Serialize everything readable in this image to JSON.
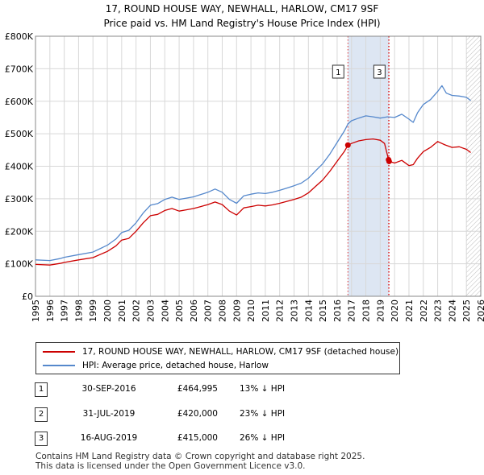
{
  "chart_data": {
    "type": "line",
    "title_line1": "17, ROUND HOUSE WAY, NEWHALL, HARLOW, CM17 9SF",
    "title_line2": "Price paid vs. HM Land Registry's House Price Index (HPI)",
    "xlim": [
      1995,
      2026
    ],
    "ylim": [
      0,
      800000
    ],
    "y_ticks": [
      {
        "value": 0,
        "label": "£0"
      },
      {
        "value": 100000,
        "label": "£100K"
      },
      {
        "value": 200000,
        "label": "£200K"
      },
      {
        "value": 300000,
        "label": "£300K"
      },
      {
        "value": 400000,
        "label": "£400K"
      },
      {
        "value": 500000,
        "label": "£500K"
      },
      {
        "value": 600000,
        "label": "£600K"
      },
      {
        "value": 700000,
        "label": "£700K"
      },
      {
        "value": 800000,
        "label": "£800K"
      }
    ],
    "x_ticks": [
      "1995",
      "1996",
      "1997",
      "1998",
      "1999",
      "2000",
      "2001",
      "2002",
      "2003",
      "2004",
      "2005",
      "2006",
      "2007",
      "2008",
      "2009",
      "2010",
      "2011",
      "2012",
      "2013",
      "2014",
      "2015",
      "2016",
      "2017",
      "2018",
      "2019",
      "2020",
      "2021",
      "2022",
      "2023",
      "2024",
      "2025",
      "2026"
    ],
    "series": [
      {
        "name": "17, ROUND HOUSE WAY, NEWHALL, HARLOW, CM17 9SF (detached house)",
        "color": "#cc0000",
        "points": [
          [
            1995.0,
            98000
          ],
          [
            1996.0,
            96000
          ],
          [
            1996.7,
            101000
          ],
          [
            1997.0,
            104000
          ],
          [
            1998.0,
            112000
          ],
          [
            1999.0,
            119000
          ],
          [
            2000.0,
            138000
          ],
          [
            2000.6,
            155000
          ],
          [
            2001.0,
            173000
          ],
          [
            2001.5,
            178000
          ],
          [
            2002.0,
            200000
          ],
          [
            2002.5,
            226000
          ],
          [
            2003.0,
            248000
          ],
          [
            2003.5,
            252000
          ],
          [
            2004.0,
            264000
          ],
          [
            2004.5,
            270000
          ],
          [
            2005.0,
            262000
          ],
          [
            2005.5,
            266000
          ],
          [
            2006.0,
            270000
          ],
          [
            2006.5,
            276000
          ],
          [
            2007.0,
            282000
          ],
          [
            2007.5,
            290000
          ],
          [
            2008.0,
            282000
          ],
          [
            2008.5,
            262000
          ],
          [
            2009.0,
            250000
          ],
          [
            2009.5,
            272000
          ],
          [
            2010.0,
            276000
          ],
          [
            2010.5,
            280000
          ],
          [
            2011.0,
            278000
          ],
          [
            2011.5,
            281000
          ],
          [
            2012.0,
            286000
          ],
          [
            2012.5,
            292000
          ],
          [
            2013.0,
            298000
          ],
          [
            2013.5,
            305000
          ],
          [
            2014.0,
            318000
          ],
          [
            2014.5,
            338000
          ],
          [
            2015.0,
            358000
          ],
          [
            2015.5,
            385000
          ],
          [
            2016.0,
            415000
          ],
          [
            2016.5,
            445000
          ],
          [
            2016.75,
            464995
          ],
          [
            2017.0,
            470000
          ],
          [
            2017.5,
            478000
          ],
          [
            2018.0,
            482000
          ],
          [
            2018.5,
            484000
          ],
          [
            2019.0,
            480000
          ],
          [
            2019.3,
            470000
          ],
          [
            2019.58,
            420000
          ],
          [
            2019.62,
            415000
          ],
          [
            2020.0,
            410000
          ],
          [
            2020.5,
            418000
          ],
          [
            2021.0,
            402000
          ],
          [
            2021.3,
            405000
          ],
          [
            2021.6,
            425000
          ],
          [
            2022.0,
            445000
          ],
          [
            2022.5,
            458000
          ],
          [
            2023.0,
            476000
          ],
          [
            2023.5,
            466000
          ],
          [
            2024.0,
            458000
          ],
          [
            2024.5,
            460000
          ],
          [
            2025.0,
            452000
          ],
          [
            2025.3,
            442000
          ]
        ],
        "markers": [
          [
            2016.75,
            464995
          ],
          [
            2019.58,
            420000
          ],
          [
            2019.62,
            415000
          ]
        ]
      },
      {
        "name": "HPI: Average price, detached house, Harlow",
        "color": "#5588cc",
        "points": [
          [
            1995.0,
            112000
          ],
          [
            1996.0,
            110000
          ],
          [
            1996.7,
            116000
          ],
          [
            1997.0,
            120000
          ],
          [
            1998.0,
            128000
          ],
          [
            1999.0,
            136000
          ],
          [
            2000.0,
            157000
          ],
          [
            2000.6,
            176000
          ],
          [
            2001.0,
            196000
          ],
          [
            2001.5,
            203000
          ],
          [
            2002.0,
            226000
          ],
          [
            2002.5,
            256000
          ],
          [
            2003.0,
            280000
          ],
          [
            2003.5,
            285000
          ],
          [
            2004.0,
            298000
          ],
          [
            2004.5,
            305000
          ],
          [
            2005.0,
            298000
          ],
          [
            2005.5,
            302000
          ],
          [
            2006.0,
            306000
          ],
          [
            2006.5,
            313000
          ],
          [
            2007.0,
            320000
          ],
          [
            2007.5,
            330000
          ],
          [
            2008.0,
            320000
          ],
          [
            2008.5,
            298000
          ],
          [
            2009.0,
            286000
          ],
          [
            2009.5,
            309000
          ],
          [
            2010.0,
            314000
          ],
          [
            2010.5,
            318000
          ],
          [
            2011.0,
            316000
          ],
          [
            2011.5,
            320000
          ],
          [
            2012.0,
            326000
          ],
          [
            2012.5,
            333000
          ],
          [
            2013.0,
            340000
          ],
          [
            2013.5,
            348000
          ],
          [
            2014.0,
            363000
          ],
          [
            2014.5,
            386000
          ],
          [
            2015.0,
            408000
          ],
          [
            2015.5,
            438000
          ],
          [
            2016.0,
            473000
          ],
          [
            2016.5,
            508000
          ],
          [
            2016.75,
            530000
          ],
          [
            2017.0,
            540000
          ],
          [
            2017.5,
            548000
          ],
          [
            2018.0,
            555000
          ],
          [
            2018.5,
            552000
          ],
          [
            2019.0,
            548000
          ],
          [
            2019.5,
            552000
          ],
          [
            2020.0,
            550000
          ],
          [
            2020.5,
            560000
          ],
          [
            2021.0,
            545000
          ],
          [
            2021.3,
            535000
          ],
          [
            2021.6,
            565000
          ],
          [
            2022.0,
            590000
          ],
          [
            2022.5,
            605000
          ],
          [
            2023.0,
            630000
          ],
          [
            2023.3,
            648000
          ],
          [
            2023.6,
            625000
          ],
          [
            2024.0,
            618000
          ],
          [
            2024.5,
            616000
          ],
          [
            2025.0,
            612000
          ],
          [
            2025.3,
            602000
          ]
        ]
      }
    ],
    "annotations": [
      {
        "label": "1",
        "x": 2016.75
      },
      {
        "label": "2",
        "x": 2019.58
      },
      {
        "label": "3",
        "x": 2019.62
      }
    ],
    "visible_badges": [
      "1",
      "3"
    ],
    "shaded_start": 2016.75,
    "shaded_end": 2019.62,
    "hatch_start": 2025.0
  },
  "legend": {
    "items": [
      {
        "label": "17, ROUND HOUSE WAY, NEWHALL, HARLOW, CM17 9SF (detached house)",
        "color": "#cc0000"
      },
      {
        "label": "HPI: Average price, detached house, Harlow",
        "color": "#5588cc"
      }
    ]
  },
  "transactions": [
    {
      "num": "1",
      "date": "30-SEP-2016",
      "price": "£464,995",
      "hpi": "13% ↓ HPI"
    },
    {
      "num": "2",
      "date": "31-JUL-2019",
      "price": "£420,000",
      "hpi": "23% ↓ HPI"
    },
    {
      "num": "3",
      "date": "16-AUG-2019",
      "price": "£415,000",
      "hpi": "26% ↓ HPI"
    }
  ],
  "footer": {
    "line1": "Contains HM Land Registry data © Crown copyright and database right 2025.",
    "line2": "This data is licensed under the Open Government Licence v3.0."
  }
}
